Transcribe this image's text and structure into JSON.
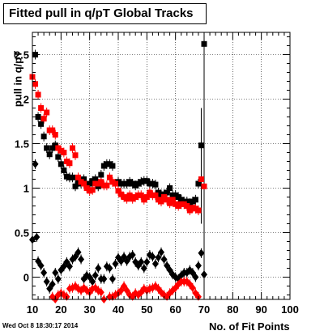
{
  "chart_data": {
    "type": "scatter",
    "title": "Fitted pull in q/pT  Global Tracks",
    "xlabel": "No. of Fit Points",
    "ylabel": "pull in q/pT",
    "xlim": [
      10,
      100
    ],
    "ylim": [
      -0.25,
      2.75
    ],
    "x_ticks": [
      "10",
      "20",
      "30",
      "40",
      "50",
      "60",
      "70",
      "80",
      "90",
      "100"
    ],
    "y_ticks": [
      "0",
      "0.5",
      "1",
      "1.5",
      "2",
      "2.5"
    ],
    "grid": true,
    "series": [
      {
        "marker": "square",
        "color": "#000000",
        "points": [
          [
            11,
            2.5
          ],
          [
            12,
            1.8
          ],
          [
            13,
            1.72
          ],
          [
            14,
            1.58
          ],
          [
            15,
            1.45
          ],
          [
            16,
            1.38
          ],
          [
            17,
            1.45
          ],
          [
            18,
            1.48
          ],
          [
            19,
            1.35
          ],
          [
            20,
            1.27
          ],
          [
            21,
            1.2
          ],
          [
            22,
            1.13
          ],
          [
            23,
            1.12
          ],
          [
            24,
            1.12
          ],
          [
            25,
            1.02
          ],
          [
            26,
            1.07
          ],
          [
            27,
            1.05
          ],
          [
            28,
            1.1
          ],
          [
            29,
            1.02
          ],
          [
            30,
            1.05
          ],
          [
            31,
            1.08
          ],
          [
            32,
            1.1
          ],
          [
            33,
            1.02
          ],
          [
            34,
            1.15
          ],
          [
            35,
            1.25
          ],
          [
            36,
            1.27
          ],
          [
            37,
            1.27
          ],
          [
            38,
            1.25
          ],
          [
            39,
            1.05
          ],
          [
            40,
            1.07
          ],
          [
            41,
            1.05
          ],
          [
            42,
            1.05
          ],
          [
            43,
            1.05
          ],
          [
            44,
            1.07
          ],
          [
            45,
            1.05
          ],
          [
            46,
            1.03
          ],
          [
            47,
            1.05
          ],
          [
            48,
            1.07
          ],
          [
            49,
            1.08
          ],
          [
            50,
            1.08
          ],
          [
            51,
            1.05
          ],
          [
            52,
            1.05
          ],
          [
            53,
            1.04
          ],
          [
            54,
            0.95
          ],
          [
            55,
            0.93
          ],
          [
            56,
            0.93
          ],
          [
            57,
            0.95
          ],
          [
            58,
            1.0
          ],
          [
            59,
            0.92
          ],
          [
            60,
            0.92
          ],
          [
            61,
            0.9
          ],
          [
            62,
            0.87
          ],
          [
            63,
            0.85
          ],
          [
            64,
            0.85
          ],
          [
            65,
            0.83
          ],
          [
            66,
            0.85
          ],
          [
            67,
            0.87
          ],
          [
            68,
            1.05
          ],
          [
            69,
            1.48
          ],
          [
            70,
            2.62
          ]
        ]
      },
      {
        "marker": "square",
        "color": "#ff0000",
        "points": [
          [
            10,
            2.25
          ],
          [
            11,
            2.17
          ],
          [
            12,
            2.05
          ],
          [
            13,
            1.9
          ],
          [
            14,
            1.78
          ],
          [
            15,
            1.85
          ],
          [
            16,
            1.65
          ],
          [
            17,
            1.65
          ],
          [
            18,
            1.6
          ],
          [
            19,
            1.45
          ],
          [
            20,
            1.42
          ],
          [
            21,
            1.4
          ],
          [
            22,
            1.3
          ],
          [
            23,
            1.28
          ],
          [
            24,
            1.45
          ],
          [
            25,
            1.37
          ],
          [
            26,
            1.12
          ],
          [
            27,
            1.07
          ],
          [
            28,
            1.05
          ],
          [
            29,
            1.0
          ],
          [
            30,
            0.97
          ],
          [
            31,
            0.98
          ],
          [
            32,
            1.05
          ],
          [
            33,
            1.05
          ],
          [
            34,
            1.07
          ],
          [
            35,
            1.03
          ],
          [
            36,
            1.03
          ],
          [
            37,
            1.12
          ],
          [
            38,
            1.07
          ],
          [
            39,
            1.05
          ],
          [
            40,
            0.97
          ],
          [
            41,
            0.93
          ],
          [
            42,
            0.9
          ],
          [
            43,
            0.88
          ],
          [
            44,
            0.92
          ],
          [
            45,
            0.88
          ],
          [
            46,
            0.9
          ],
          [
            47,
            0.92
          ],
          [
            48,
            0.92
          ],
          [
            49,
            0.87
          ],
          [
            50,
            0.9
          ],
          [
            51,
            0.95
          ],
          [
            52,
            0.92
          ],
          [
            53,
            0.92
          ],
          [
            54,
            0.87
          ],
          [
            55,
            0.85
          ],
          [
            56,
            0.9
          ],
          [
            57,
            0.87
          ],
          [
            58,
            0.83
          ],
          [
            59,
            0.87
          ],
          [
            60,
            0.82
          ],
          [
            61,
            0.8
          ],
          [
            62,
            0.82
          ],
          [
            63,
            0.82
          ],
          [
            64,
            0.8
          ],
          [
            65,
            0.75
          ],
          [
            66,
            0.78
          ],
          [
            67,
            0.77
          ],
          [
            68,
            0.75
          ],
          [
            69,
            1.1
          ],
          [
            70,
            1.02
          ]
        ]
      },
      {
        "marker": "diamond",
        "color": "#000000",
        "points": [
          [
            10,
            0.42
          ],
          [
            11,
            1.27
          ],
          [
            11.5,
            0.45
          ],
          [
            12,
            0.18
          ],
          [
            13,
            0.13
          ],
          [
            14,
            0.05
          ],
          [
            15,
            -0.05
          ],
          [
            16,
            -0.13
          ],
          [
            17,
            -0.08
          ],
          [
            18,
            0.05
          ],
          [
            19,
            -0.02
          ],
          [
            20,
            0.08
          ],
          [
            21,
            0.12
          ],
          [
            22,
            0.17
          ],
          [
            23,
            0.12
          ],
          [
            24,
            0.2
          ],
          [
            25,
            0.23
          ],
          [
            26,
            0.28
          ],
          [
            27,
            0.2
          ],
          [
            28,
            -0.02
          ],
          [
            29,
            0.02
          ],
          [
            30,
            0.0
          ],
          [
            31,
            -0.05
          ],
          [
            32,
            0.02
          ],
          [
            33,
            0.1
          ],
          [
            34,
            -0.02
          ],
          [
            35,
            -0.02
          ],
          [
            36,
            0.12
          ],
          [
            37,
            0.1
          ],
          [
            38,
            -0.02
          ],
          [
            39,
            0.15
          ],
          [
            40,
            0.22
          ],
          [
            41,
            0.18
          ],
          [
            42,
            0.23
          ],
          [
            43,
            0.18
          ],
          [
            44,
            0.23
          ],
          [
            45,
            0.25
          ],
          [
            46,
            0.17
          ],
          [
            47,
            0.13
          ],
          [
            48,
            0.17
          ],
          [
            49,
            0.1
          ],
          [
            50,
            0.17
          ],
          [
            51,
            0.25
          ],
          [
            52,
            0.23
          ],
          [
            53,
            0.15
          ],
          [
            54,
            0.22
          ],
          [
            55,
            0.28
          ],
          [
            56,
            0.2
          ],
          [
            57,
            0.13
          ],
          [
            58,
            0.08
          ],
          [
            59,
            0.03
          ],
          [
            60,
            0.0
          ],
          [
            61,
            -0.02
          ],
          [
            62,
            0.02
          ],
          [
            63,
            0.05
          ],
          [
            64,
            0.05
          ],
          [
            65,
            0.08
          ],
          [
            66,
            0.05
          ],
          [
            67,
            0.0
          ],
          [
            68,
            0.13
          ],
          [
            69,
            0.27
          ],
          [
            70,
            0.03
          ]
        ]
      },
      {
        "marker": "diamond",
        "color": "#ff0000",
        "points": [
          [
            17,
            -0.22
          ],
          [
            18,
            -0.25
          ],
          [
            19,
            -0.2
          ],
          [
            20,
            -0.18
          ],
          [
            21,
            -0.2
          ],
          [
            22,
            -0.22
          ],
          [
            23,
            -0.13
          ],
          [
            24,
            -0.12
          ],
          [
            25,
            -0.1
          ],
          [
            26,
            -0.13
          ],
          [
            27,
            -0.15
          ],
          [
            28,
            -0.12
          ],
          [
            29,
            -0.15
          ],
          [
            30,
            -0.17
          ],
          [
            31,
            -0.13
          ],
          [
            32,
            -0.12
          ],
          [
            33,
            -0.15
          ],
          [
            34,
            -0.17
          ],
          [
            35,
            -0.25
          ],
          [
            37,
            -0.22
          ],
          [
            38,
            -0.22
          ],
          [
            39,
            -0.2
          ],
          [
            40,
            -0.18
          ],
          [
            41,
            -0.15
          ],
          [
            42,
            -0.1
          ],
          [
            43,
            -0.15
          ],
          [
            44,
            -0.2
          ],
          [
            45,
            -0.22
          ],
          [
            46,
            -0.18
          ],
          [
            47,
            -0.2
          ],
          [
            48,
            -0.17
          ],
          [
            49,
            -0.13
          ],
          [
            50,
            -0.15
          ],
          [
            51,
            -0.13
          ],
          [
            52,
            -0.12
          ],
          [
            53,
            -0.1
          ],
          [
            54,
            -0.13
          ],
          [
            55,
            -0.17
          ],
          [
            56,
            -0.2
          ],
          [
            57,
            -0.22
          ],
          [
            58,
            -0.18
          ],
          [
            59,
            -0.15
          ],
          [
            60,
            -0.12
          ],
          [
            61,
            -0.08
          ],
          [
            62,
            -0.05
          ],
          [
            63,
            -0.05
          ],
          [
            64,
            -0.05
          ],
          [
            65,
            -0.08
          ],
          [
            66,
            -0.12
          ],
          [
            67,
            -0.18
          ],
          [
            68,
            -0.22
          ]
        ]
      }
    ]
  },
  "footer": {
    "timestamp": "Wed Oct  8 18:30:17 2014"
  }
}
